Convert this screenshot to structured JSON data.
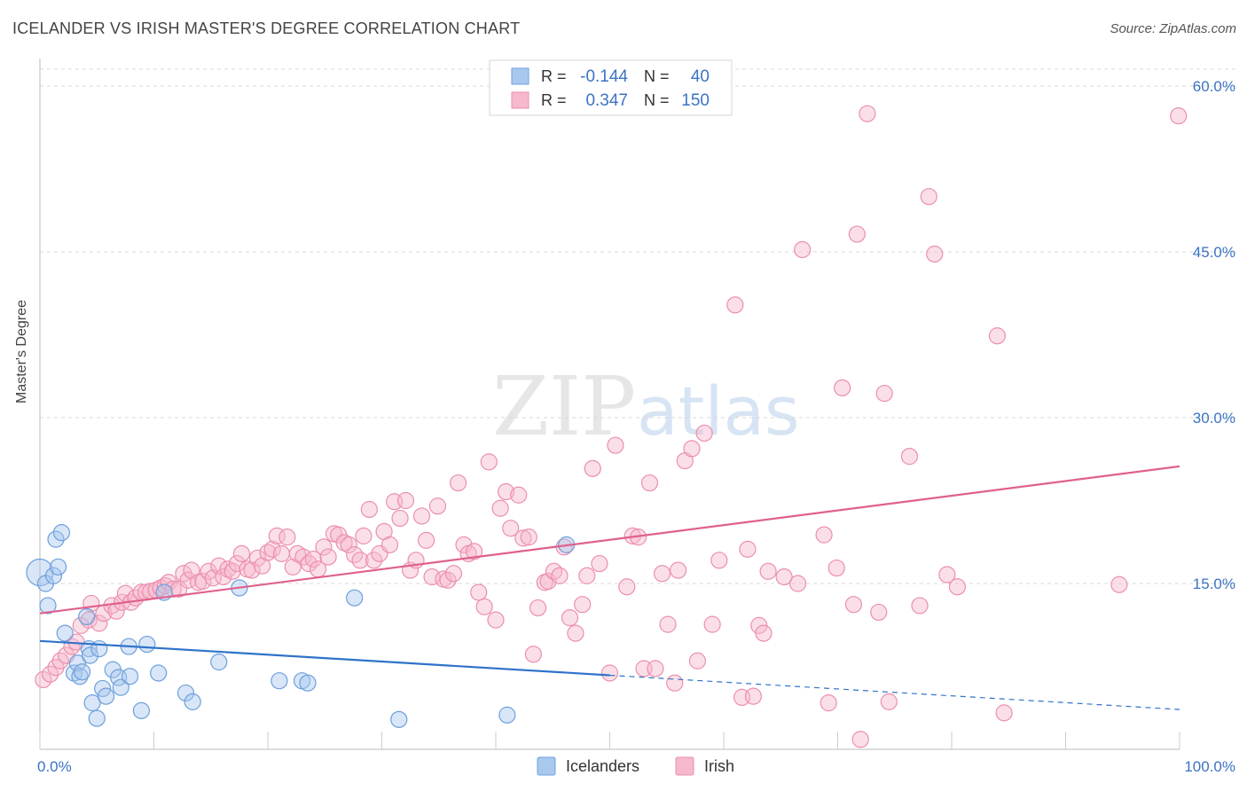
{
  "title": "ICELANDER VS IRISH MASTER'S DEGREE CORRELATION CHART",
  "source": "Source: ZipAtlas.com",
  "watermark": {
    "zip": "ZIP",
    "atlas": "atlas"
  },
  "colors": {
    "blue_fill": "#a9c8ee",
    "blue_stroke": "#6d9fdc",
    "blue_line": "#2f73c9",
    "pink_fill": "#f6b8cc",
    "pink_stroke": "#eb8fae",
    "pink_line": "#e0608e",
    "tick_text": "#3b73c4",
    "grid": "#d8d8d8"
  },
  "legend": {
    "rows": [
      {
        "r_label": "R = ",
        "r_value": "-0.144",
        "n_label": "N = ",
        "n_value": "40",
        "color": "blue"
      },
      {
        "r_label": "R = ",
        "r_value": "0.347",
        "n_label": "N = ",
        "n_value": "150",
        "color": "pink"
      }
    ]
  },
  "bottom_legend": [
    {
      "label": "Icelanders",
      "color": "blue"
    },
    {
      "label": "Irish",
      "color": "pink"
    }
  ],
  "chart_data": {
    "type": "scatter",
    "xlabel": "",
    "ylabel": "Master's Degree",
    "xlim": [
      0,
      100
    ],
    "ylim": [
      0,
      60
    ],
    "x_tick_labels": [
      {
        "value": 0,
        "label": "0.0%"
      },
      {
        "value": 100,
        "label": "100.0%"
      }
    ],
    "y_tick_labels": [
      {
        "value": 15,
        "label": "15.0%"
      },
      {
        "value": 30,
        "label": "30.0%"
      },
      {
        "value": 45,
        "label": "45.0%"
      },
      {
        "value": 60,
        "label": "60.0%"
      }
    ],
    "grid": true,
    "series": [
      {
        "name": "Icelanders",
        "color": "blue",
        "trend": {
          "x0": 0,
          "y0": 9.8,
          "x1": 50,
          "y1": 6.7,
          "dash_to_x": 100,
          "dash_to_y": 3.6
        },
        "points": [
          [
            0,
            16
          ],
          [
            0.5,
            15
          ],
          [
            0.7,
            13
          ],
          [
            1.2,
            15.7
          ],
          [
            1.4,
            19
          ],
          [
            1.6,
            16.5
          ],
          [
            1.9,
            19.6
          ],
          [
            2.2,
            10.5
          ],
          [
            3,
            6.9
          ],
          [
            3.3,
            7.8
          ],
          [
            3.5,
            6.6
          ],
          [
            3.7,
            7
          ],
          [
            4.1,
            12
          ],
          [
            4.3,
            9.1
          ],
          [
            4.4,
            8.5
          ],
          [
            4.6,
            4.2
          ],
          [
            5,
            2.8
          ],
          [
            5.2,
            9.1
          ],
          [
            5.5,
            5.5
          ],
          [
            5.8,
            4.8
          ],
          [
            6.4,
            7.2
          ],
          [
            6.9,
            6.5
          ],
          [
            7.1,
            5.6
          ],
          [
            7.8,
            9.3
          ],
          [
            7.9,
            6.6
          ],
          [
            8.9,
            3.5
          ],
          [
            9.4,
            9.5
          ],
          [
            10.4,
            6.9
          ],
          [
            10.9,
            14.2
          ],
          [
            12.8,
            5.1
          ],
          [
            13.4,
            4.3
          ],
          [
            15.7,
            7.9
          ],
          [
            17.5,
            14.6
          ],
          [
            21,
            6.2
          ],
          [
            23,
            6.2
          ],
          [
            23.5,
            6
          ],
          [
            27.6,
            13.7
          ],
          [
            31.5,
            2.7
          ],
          [
            41,
            3.1
          ],
          [
            46.2,
            18.5
          ]
        ]
      },
      {
        "name": "Irish",
        "color": "pink",
        "trend": {
          "x0": 0,
          "y0": 12.3,
          "x1": 100,
          "y1": 25.6
        },
        "points": [
          [
            0.3,
            6.3
          ],
          [
            0.9,
            6.8
          ],
          [
            1.4,
            7.4
          ],
          [
            1.8,
            8
          ],
          [
            2.3,
            8.5
          ],
          [
            2.8,
            9.3
          ],
          [
            3.2,
            9.7
          ],
          [
            3.6,
            11.2
          ],
          [
            4.3,
            11.7
          ],
          [
            4.5,
            13.2
          ],
          [
            5.2,
            11.4
          ],
          [
            5.6,
            12.3
          ],
          [
            6.3,
            13
          ],
          [
            6.7,
            12.5
          ],
          [
            7.2,
            13.3
          ],
          [
            7.5,
            14.1
          ],
          [
            8,
            13.3
          ],
          [
            8.4,
            13.7
          ],
          [
            8.9,
            14.2
          ],
          [
            9.3,
            14.2
          ],
          [
            9.7,
            14.3
          ],
          [
            10.2,
            14.4
          ],
          [
            10.6,
            14.6
          ],
          [
            11,
            14.8
          ],
          [
            11.3,
            15.1
          ],
          [
            11.7,
            14.5
          ],
          [
            12.2,
            14.5
          ],
          [
            12.6,
            15.9
          ],
          [
            13,
            15.3
          ],
          [
            13.3,
            16.2
          ],
          [
            13.9,
            15.1
          ],
          [
            14.3,
            15.2
          ],
          [
            14.8,
            16.1
          ],
          [
            15.2,
            15.5
          ],
          [
            15.7,
            16.6
          ],
          [
            16.1,
            15.6
          ],
          [
            16.5,
            16.3
          ],
          [
            16.9,
            16.1
          ],
          [
            17.3,
            16.8
          ],
          [
            17.7,
            17.7
          ],
          [
            18.2,
            16.3
          ],
          [
            18.6,
            16.2
          ],
          [
            19.1,
            17.3
          ],
          [
            19.5,
            16.6
          ],
          [
            20,
            17.8
          ],
          [
            20.4,
            18.1
          ],
          [
            20.8,
            19.3
          ],
          [
            21.2,
            17.7
          ],
          [
            21.7,
            19.2
          ],
          [
            22.2,
            16.5
          ],
          [
            22.6,
            17.7
          ],
          [
            23.1,
            17.4
          ],
          [
            23.6,
            16.8
          ],
          [
            24,
            17.2
          ],
          [
            24.4,
            16.3
          ],
          [
            24.9,
            18.3
          ],
          [
            25.3,
            17.4
          ],
          [
            25.8,
            19.5
          ],
          [
            26.2,
            19.4
          ],
          [
            26.7,
            18.7
          ],
          [
            27.1,
            18.5
          ],
          [
            27.6,
            17.6
          ],
          [
            28.1,
            17.1
          ],
          [
            28.4,
            19.3
          ],
          [
            28.9,
            21.7
          ],
          [
            29.3,
            17.1
          ],
          [
            29.8,
            17.7
          ],
          [
            30.2,
            19.7
          ],
          [
            30.7,
            18.5
          ],
          [
            31.1,
            22.4
          ],
          [
            31.6,
            20.9
          ],
          [
            32.1,
            22.5
          ],
          [
            32.5,
            16.2
          ],
          [
            33,
            17.1
          ],
          [
            33.5,
            21.1
          ],
          [
            33.9,
            18.9
          ],
          [
            34.4,
            15.6
          ],
          [
            34.9,
            22
          ],
          [
            35.4,
            15.4
          ],
          [
            35.8,
            15.3
          ],
          [
            36.3,
            15.9
          ],
          [
            36.7,
            24.1
          ],
          [
            37.2,
            18.5
          ],
          [
            37.6,
            17.7
          ],
          [
            38.1,
            17.9
          ],
          [
            38.5,
            14.2
          ],
          [
            39,
            12.9
          ],
          [
            39.4,
            26
          ],
          [
            40,
            11.7
          ],
          [
            40.4,
            21.8
          ],
          [
            40.9,
            23.3
          ],
          [
            41.3,
            20
          ],
          [
            42,
            23
          ],
          [
            42.4,
            19.1
          ],
          [
            42.9,
            19.2
          ],
          [
            43.3,
            8.6
          ],
          [
            43.7,
            12.8
          ],
          [
            44.3,
            15.1
          ],
          [
            44.6,
            15.2
          ],
          [
            45.1,
            16.1
          ],
          [
            45.6,
            15.7
          ],
          [
            46,
            18.3
          ],
          [
            46.5,
            11.9
          ],
          [
            47,
            10.5
          ],
          [
            47.6,
            13.1
          ],
          [
            48,
            15.7
          ],
          [
            48.5,
            25.4
          ],
          [
            49.1,
            16.8
          ],
          [
            50,
            6.9
          ],
          [
            50.5,
            27.5
          ],
          [
            51.5,
            14.7
          ],
          [
            52,
            19.3
          ],
          [
            52.5,
            19.2
          ],
          [
            53,
            7.3
          ],
          [
            53.5,
            24.1
          ],
          [
            54,
            7.3
          ],
          [
            54.6,
            15.9
          ],
          [
            55.1,
            11.3
          ],
          [
            55.7,
            6
          ],
          [
            56,
            16.2
          ],
          [
            56.6,
            26.1
          ],
          [
            57.2,
            27.2
          ],
          [
            57.7,
            8
          ],
          [
            58.3,
            28.6
          ],
          [
            59,
            11.3
          ],
          [
            59.6,
            17.1
          ],
          [
            61,
            40.2
          ],
          [
            61.6,
            4.7
          ],
          [
            62.1,
            18.1
          ],
          [
            62.6,
            4.8
          ],
          [
            63.1,
            11.2
          ],
          [
            63.5,
            10.5
          ],
          [
            63.9,
            16.1
          ],
          [
            65.3,
            15.6
          ],
          [
            66.5,
            15.0
          ],
          [
            66.9,
            45.2
          ],
          [
            68.8,
            19.4
          ],
          [
            69.2,
            4.2
          ],
          [
            69.9,
            16.4
          ],
          [
            70.4,
            32.7
          ],
          [
            71.4,
            13.1
          ],
          [
            71.7,
            46.6
          ],
          [
            72,
            0.9
          ],
          [
            72.6,
            57.5
          ],
          [
            73.6,
            12.4
          ],
          [
            74.1,
            32.2
          ],
          [
            74.5,
            4.3
          ],
          [
            76.3,
            26.5
          ],
          [
            77.2,
            13
          ],
          [
            78,
            50.0
          ],
          [
            78.5,
            44.8
          ],
          [
            79.6,
            15.8
          ],
          [
            80.5,
            14.7
          ],
          [
            84,
            37.4
          ],
          [
            84.6,
            3.3
          ],
          [
            94.7,
            14.9
          ],
          [
            99.9,
            57.3
          ]
        ]
      }
    ]
  }
}
